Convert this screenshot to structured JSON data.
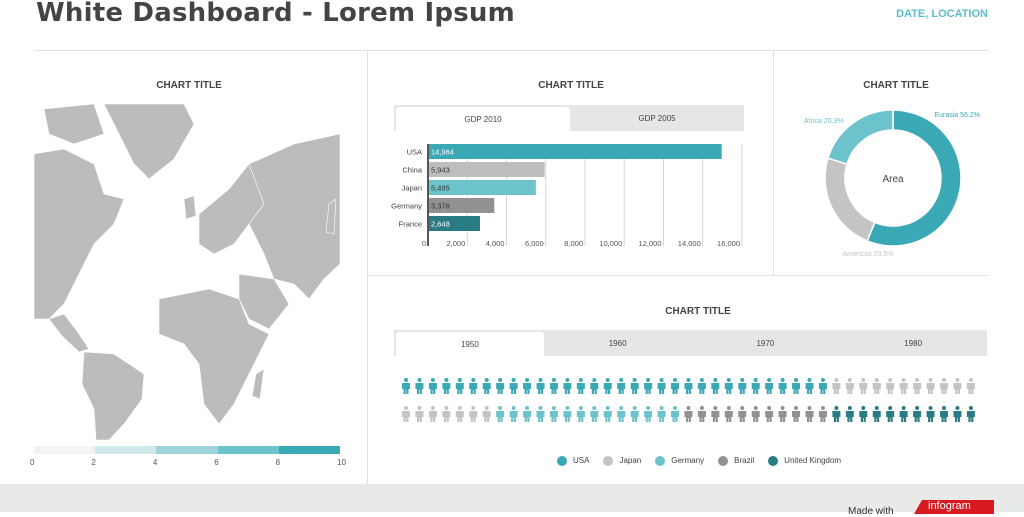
{
  "header": {
    "title": "White Dashboard - Lorem Ipsum",
    "date_location": "DATE, LOCATION"
  },
  "colors": {
    "teal": "#3ba8b5",
    "light_teal": "#6cc3cc",
    "dark_teal": "#2a7c84",
    "gray": "#bdbdbd",
    "dark_gray": "#919191",
    "map": "#bcbcbc",
    "brand_red": "#d71920"
  },
  "map_panel": {
    "title": "CHART TITLE",
    "scale_labels": [
      "0",
      "2",
      "4",
      "6",
      "8",
      "10"
    ],
    "scale_colors": [
      "#f3f3f3",
      "#cfe9eb",
      "#9fd5da",
      "#6cc3cc",
      "#3ba8b5"
    ]
  },
  "bar_panel": {
    "title": "CHART TITLE",
    "tabs": [
      {
        "label": "GDP 2010",
        "active": true
      },
      {
        "label": "GDP 2005",
        "active": false
      }
    ]
  },
  "donut_panel": {
    "title": "CHART TITLE"
  },
  "picto_panel": {
    "title": "CHART TITLE",
    "tabs": [
      {
        "label": "1950",
        "active": true
      },
      {
        "label": "1960",
        "active": false
      },
      {
        "label": "1970",
        "active": false
      },
      {
        "label": "1980",
        "active": false
      }
    ]
  },
  "chart_data": [
    {
      "type": "bar",
      "orientation": "horizontal",
      "categories": [
        "USA",
        "China",
        "Japan",
        "Germany",
        "France"
      ],
      "values": [
        14964,
        5943,
        5495,
        3378,
        2648
      ],
      "value_labels": [
        "14,964",
        "5,943",
        "5,495",
        "3,378",
        "2,648"
      ],
      "bar_colors": [
        "#3ba8b5",
        "#bdbdbd",
        "#6cc3cc",
        "#919191",
        "#2a7c84"
      ],
      "xlim": [
        0,
        16000
      ],
      "x_ticks": [
        "0",
        "2,000",
        "4,000",
        "6,000",
        "8,000",
        "10,000",
        "12,000",
        "14,000",
        "16,000"
      ],
      "grid": true
    },
    {
      "type": "pie",
      "donut": true,
      "center_label": "Area",
      "slices": [
        {
          "label": "Eurasia 56.2%",
          "value": 56.2,
          "color": "#3ba8b5"
        },
        {
          "label": "Americas 23.5%",
          "value": 23.5,
          "color": "#c4c4c4"
        },
        {
          "label": "Africa 20.3%",
          "value": 20.3,
          "color": "#6cc3cc"
        }
      ]
    },
    {
      "type": "pictogram",
      "rows": [
        [
          {
            "series": "USA",
            "count": 32
          },
          {
            "series": "Japan",
            "count": 11
          }
        ],
        [
          {
            "series": "Japan",
            "count": 7
          },
          {
            "series": "Germany",
            "count": 14
          },
          {
            "series": "Brazil",
            "count": 11
          },
          {
            "series": "United Kingdom",
            "count": 11
          }
        ]
      ],
      "legend": [
        {
          "name": "USA",
          "color": "#3ba8b5"
        },
        {
          "name": "Japan",
          "color": "#c4c4c4"
        },
        {
          "name": "Germany",
          "color": "#6cc3cc"
        },
        {
          "name": "Brazil",
          "color": "#919191"
        },
        {
          "name": "United Kingdom",
          "color": "#2a7c84"
        }
      ]
    }
  ],
  "footer": {
    "made_with": "Made with",
    "brand": "infogram"
  }
}
